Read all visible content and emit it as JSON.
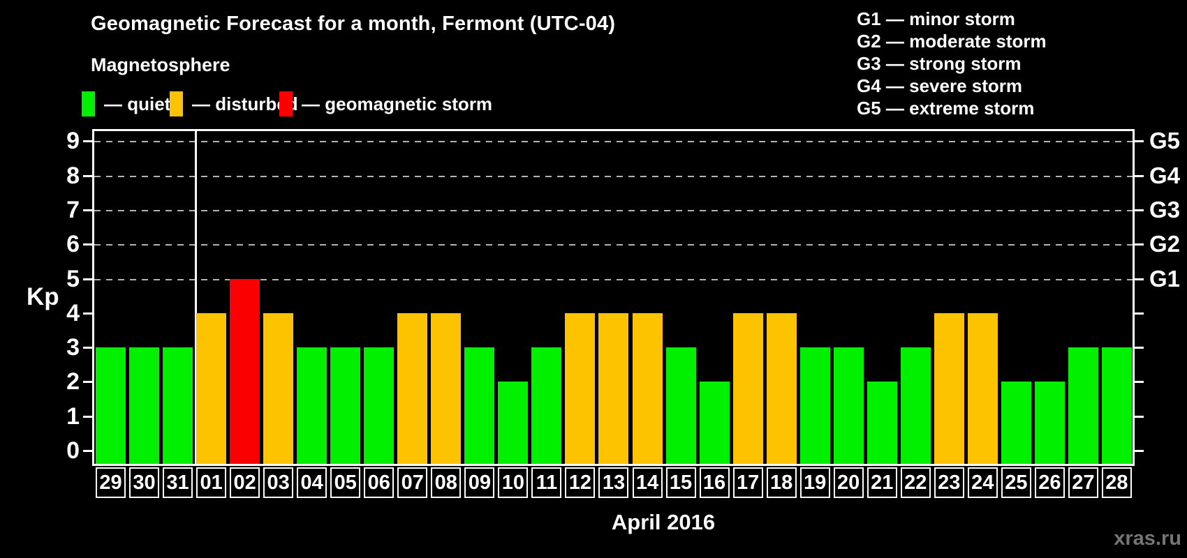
{
  "title": "Geomagnetic Forecast for a month, Fermont (UTC-04)",
  "subtitle": "Magnetosphere",
  "legend": {
    "items": [
      {
        "key": "quiet",
        "label": "— quiet",
        "color": "#00f000"
      },
      {
        "key": "disturbed",
        "label": "— disturbed",
        "color": "#fec300"
      },
      {
        "key": "storm",
        "label": "— geomagnetic storm",
        "color": "#fb0000"
      }
    ]
  },
  "g_scale_legend": [
    "G1 — minor storm",
    "G2 — moderate storm",
    "G3 — strong storm",
    "G4 — severe storm",
    "G5 — extreme storm"
  ],
  "axes": {
    "y_label": "Kp",
    "y_ticks": [
      0,
      1,
      2,
      3,
      4,
      5,
      6,
      7,
      8,
      9
    ],
    "right_labels": [
      {
        "label": "G1",
        "kp": 5
      },
      {
        "label": "G2",
        "kp": 6
      },
      {
        "label": "G3",
        "kp": 7
      },
      {
        "label": "G4",
        "kp": 8
      },
      {
        "label": "G5",
        "kp": 9
      }
    ],
    "x_label": "April 2016"
  },
  "watermark": "xras.ru",
  "colors": {
    "quiet": "#00f000",
    "disturbed": "#fec300",
    "storm": "#fb0000",
    "gridline": "#b4b4b4",
    "frame": "#ffffff"
  },
  "chart_data": {
    "type": "bar",
    "title": "Geomagnetic Forecast for a month, Fermont (UTC-04)",
    "xlabel": "April 2016",
    "ylabel": "Kp",
    "ylim": [
      0,
      9
    ],
    "grid": "dashed horizontal at Kp 5-9 only",
    "legend_position": "top",
    "month_divider_after_index": 2,
    "categories": [
      "29",
      "30",
      "31",
      "01",
      "02",
      "03",
      "04",
      "05",
      "06",
      "07",
      "08",
      "09",
      "10",
      "11",
      "12",
      "13",
      "14",
      "15",
      "16",
      "17",
      "18",
      "19",
      "20",
      "21",
      "22",
      "23",
      "24",
      "25",
      "26",
      "27",
      "28"
    ],
    "values": [
      3,
      3,
      3,
      4,
      5,
      4,
      3,
      3,
      3,
      4,
      4,
      3,
      2,
      3,
      4,
      4,
      4,
      3,
      2,
      4,
      4,
      3,
      3,
      2,
      3,
      4,
      4,
      2,
      2,
      3,
      3
    ],
    "states": [
      "quiet",
      "quiet",
      "quiet",
      "disturbed",
      "storm",
      "disturbed",
      "quiet",
      "quiet",
      "quiet",
      "disturbed",
      "disturbed",
      "quiet",
      "quiet",
      "quiet",
      "disturbed",
      "disturbed",
      "disturbed",
      "quiet",
      "quiet",
      "disturbed",
      "disturbed",
      "quiet",
      "quiet",
      "quiet",
      "quiet",
      "disturbed",
      "disturbed",
      "quiet",
      "quiet",
      "quiet",
      "quiet"
    ]
  }
}
